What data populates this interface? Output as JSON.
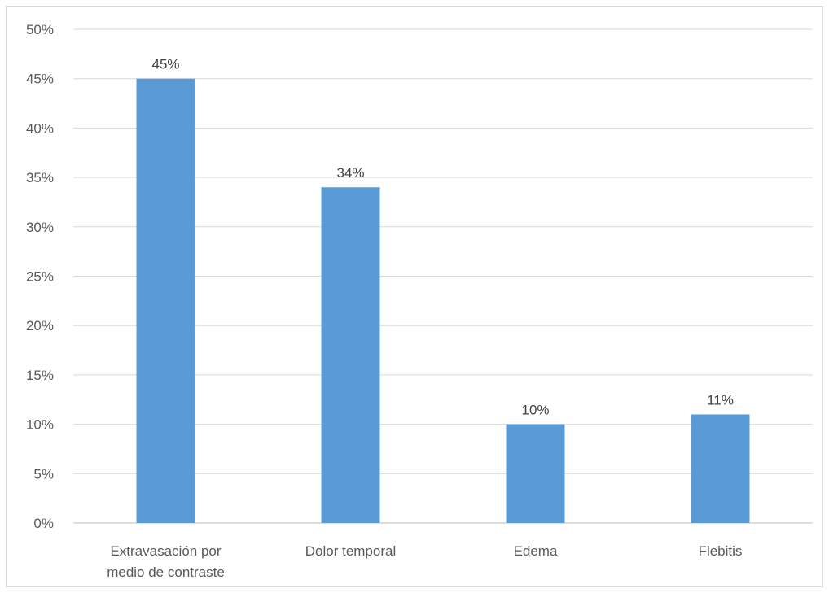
{
  "chart_data": {
    "type": "bar",
    "categories": [
      [
        "Extravasación por",
        "medio de contraste"
      ],
      [
        "Dolor temporal"
      ],
      [
        "Edema"
      ],
      [
        "Flebitis"
      ]
    ],
    "values": [
      45,
      34,
      10,
      11
    ],
    "data_labels": [
      "45%",
      "34%",
      "10%",
      "11%"
    ],
    "title": "",
    "xlabel": "",
    "ylabel": "",
    "ylim": [
      0,
      50
    ],
    "y_ticks": [
      "0%",
      "5%",
      "10%",
      "15%",
      "20%",
      "25%",
      "30%",
      "35%",
      "40%",
      "45%",
      "50%"
    ],
    "grid": true,
    "legend": "none",
    "colors": {
      "bar": "#5b9bd5",
      "grid": "#d9d9d9",
      "axis": "#bfbfbf",
      "text": "#595959"
    }
  }
}
